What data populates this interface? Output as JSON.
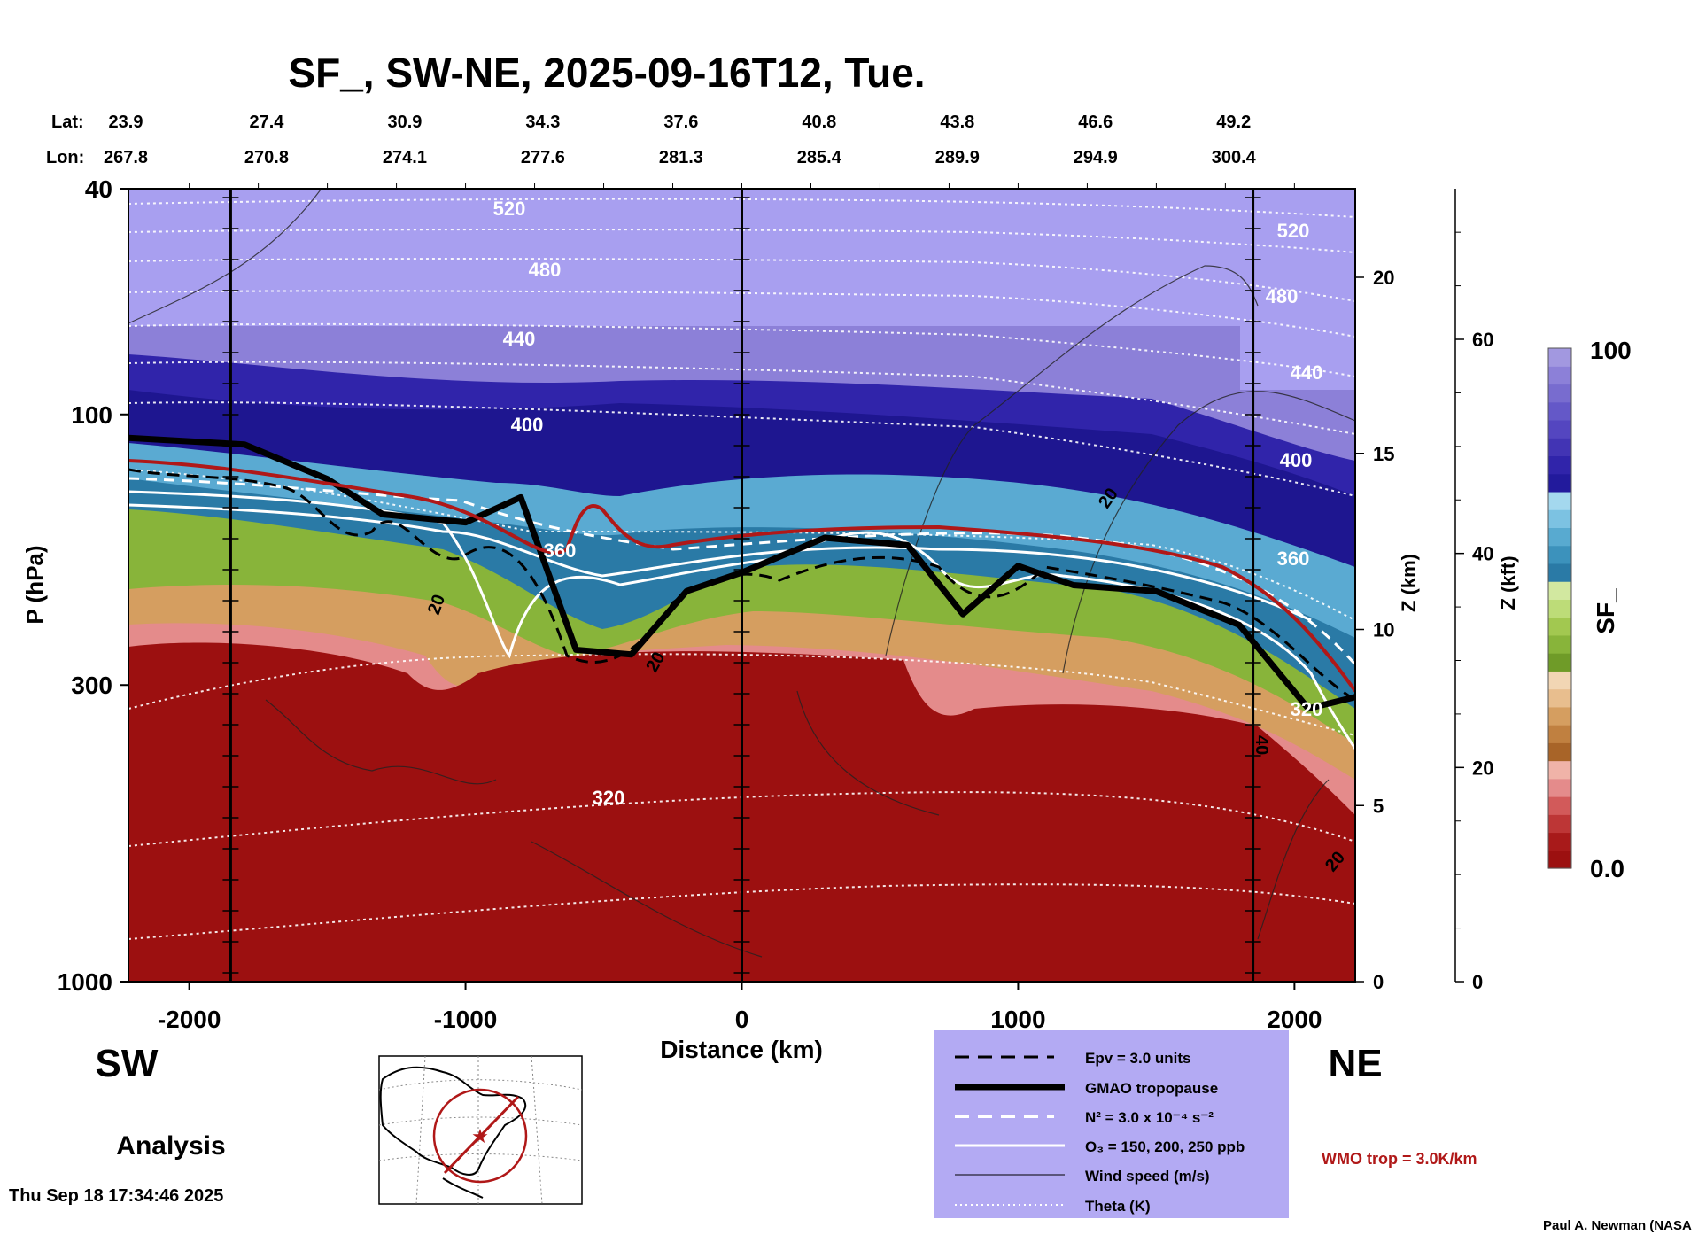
{
  "chart_data": {
    "type": "heatmap",
    "title": "SF_, SW-NE, 2025-09-16T12, Tue.",
    "xlabel": "Distance (km)",
    "ylabel": "P (hPa)",
    "z_km_label": "Z (km)",
    "z_kft_label": "Z (kft)",
    "x_range": [
      -2220,
      2220
    ],
    "p_range": [
      40,
      1000
    ],
    "x_ticks": [
      -2000,
      -1000,
      0,
      1000,
      2000
    ],
    "p_ticks": [
      40,
      100,
      300,
      1000
    ],
    "z_km_ticks": [
      0,
      5,
      10,
      15,
      20
    ],
    "z_kft_ticks": [
      0,
      20,
      40,
      60
    ],
    "vertical_lines_km": [
      -1850,
      0,
      1850
    ],
    "lat_label": "Lat:",
    "lon_label": "Lon:",
    "lat": [
      "23.9",
      "27.4",
      "30.9",
      "34.3",
      "37.6",
      "40.8",
      "43.8",
      "46.6",
      "49.2"
    ],
    "lon": [
      "267.8",
      "270.8",
      "274.1",
      "277.6",
      "281.3",
      "285.4",
      "289.9",
      "294.9",
      "300.4"
    ],
    "latlon_distance_km": [
      -2220,
      -1720,
      -1220,
      -720,
      -220,
      280,
      780,
      1280,
      1780
    ],
    "theta_levels": [
      {
        "label": "520",
        "p": 47
      },
      {
        "label": "480",
        "p": 63
      },
      {
        "label": "440",
        "p": 80
      },
      {
        "label": "400",
        "p": 102
      },
      {
        "label": "360",
        "p": 180
      },
      {
        "label": "320",
        "p": 430
      }
    ],
    "tropopause_p": [
      {
        "x": -2220,
        "p": 110
      },
      {
        "x": -1800,
        "p": 113
      },
      {
        "x": -1500,
        "p": 130
      },
      {
        "x": -1300,
        "p": 150
      },
      {
        "x": -1000,
        "p": 155
      },
      {
        "x": -800,
        "p": 140
      },
      {
        "x": -600,
        "p": 260
      },
      {
        "x": -400,
        "p": 265
      },
      {
        "x": -200,
        "p": 205
      },
      {
        "x": 0,
        "p": 190
      },
      {
        "x": 300,
        "p": 165
      },
      {
        "x": 600,
        "p": 170
      },
      {
        "x": 800,
        "p": 225
      },
      {
        "x": 1000,
        "p": 185
      },
      {
        "x": 1200,
        "p": 200
      },
      {
        "x": 1500,
        "p": 205
      },
      {
        "x": 1800,
        "p": 235
      },
      {
        "x": 2050,
        "p": 330
      },
      {
        "x": 2220,
        "p": 315
      }
    ],
    "colorbar": {
      "label": "SF_",
      "min": "0.0",
      "max": "100"
    },
    "colorbar_colors": [
      "#9c1010",
      "#a81a1a",
      "#bd3636",
      "#d25a5a",
      "#e48b8b",
      "#f0b3a8",
      "#a86428",
      "#c08040",
      "#d59e60",
      "#e8be8e",
      "#f2d6b4",
      "#6f9b28",
      "#88b43a",
      "#a2c850",
      "#bddc78",
      "#d2e8a0",
      "#2a7aa6",
      "#3c92bc",
      "#58aad0",
      "#7cc2e2",
      "#a4d8ee",
      "#221a9c",
      "#3024aa",
      "#4234b4",
      "#5446c0",
      "#6458c8",
      "#786ccf",
      "#8c80d8",
      "#a298e0"
    ],
    "region_labels": {
      "left": "SW",
      "right": "NE"
    },
    "analysis_label": "Analysis",
    "timestamp": "Thu Sep 18 17:34:46 2025",
    "credit": "Paul A. Newman (NASA",
    "wmo_label": "WMO trop = 3.0K/km",
    "legend": [
      {
        "label": "Epv = 3.0 units",
        "style": "dashed-black"
      },
      {
        "label": "GMAO tropopause",
        "style": "thick-black"
      },
      {
        "label": "N² = 3.0 x 10⁻⁴ s⁻²",
        "style": "dashed-white"
      },
      {
        "label": "O₃ = 150, 200, 250 ppb",
        "style": "solid-white"
      },
      {
        "label": "Wind speed (m/s)",
        "style": "thin-black"
      },
      {
        "label": "Theta (K)",
        "style": "dotted-white"
      }
    ],
    "wind_labels": [
      "20",
      "20",
      "20",
      "20",
      "40"
    ]
  },
  "colors": {
    "legend_bg": "#b3aaf3",
    "wmo_red": "#b01818",
    "strat_purple": "#a89ff0",
    "trop_red": "#9c1010"
  }
}
